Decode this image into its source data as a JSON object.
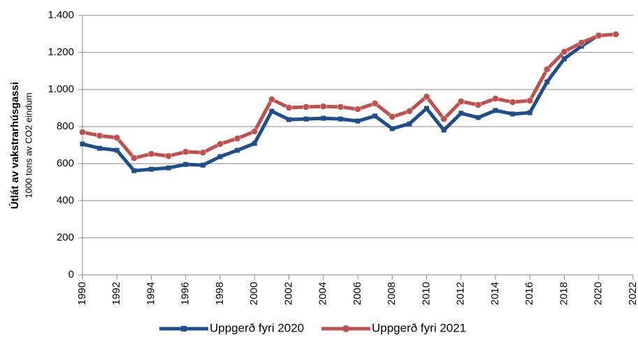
{
  "chart_data": {
    "type": "line",
    "y_label": "Útlát av vakstrarhúsgassi",
    "y_sublabel": "1000 tons av CO2 eindum",
    "x": [
      1990,
      1991,
      1992,
      1993,
      1994,
      1995,
      1996,
      1997,
      1998,
      1999,
      2000,
      2001,
      2002,
      2003,
      2004,
      2005,
      2006,
      2007,
      2008,
      2009,
      2010,
      2011,
      2012,
      2013,
      2014,
      2015,
      2016,
      2017,
      2018,
      2019,
      2020,
      2021
    ],
    "series": [
      {
        "name": "Uppgerð fyri 2020",
        "color": "#1f4e8c",
        "marker": "square",
        "values": [
          706,
          683,
          672,
          562,
          570,
          577,
          596,
          592,
          638,
          672,
          709,
          883,
          838,
          841,
          845,
          841,
          830,
          857,
          789,
          815,
          898,
          781,
          872,
          849,
          887,
          868,
          875,
          1041,
          1166,
          1234,
          1294,
          null
        ]
      },
      {
        "name": "Uppgerð fyri 2021",
        "color": "#c0504d",
        "marker": "circle",
        "values": [
          770,
          751,
          740,
          630,
          653,
          641,
          664,
          660,
          706,
          736,
          774,
          947,
          902,
          906,
          909,
          906,
          894,
          925,
          853,
          883,
          962,
          841,
          936,
          917,
          951,
          932,
          940,
          1109,
          1204,
          1253,
          1291,
          1298
        ]
      }
    ],
    "xlim": [
      1990,
      2022
    ],
    "xticks": [
      1990,
      1992,
      1994,
      1996,
      1998,
      2000,
      2002,
      2004,
      2006,
      2008,
      2010,
      2012,
      2014,
      2016,
      2018,
      2020,
      2022
    ],
    "ylim": [
      0,
      1400
    ],
    "yticks": [
      0,
      200,
      400,
      600,
      800,
      {
        "value": 1000,
        "label": "1.000"
      },
      {
        "value": 1200,
        "label": "1.200"
      },
      {
        "value": 1400,
        "label": "1.400"
      }
    ],
    "grid": true,
    "legend": "bottom"
  }
}
